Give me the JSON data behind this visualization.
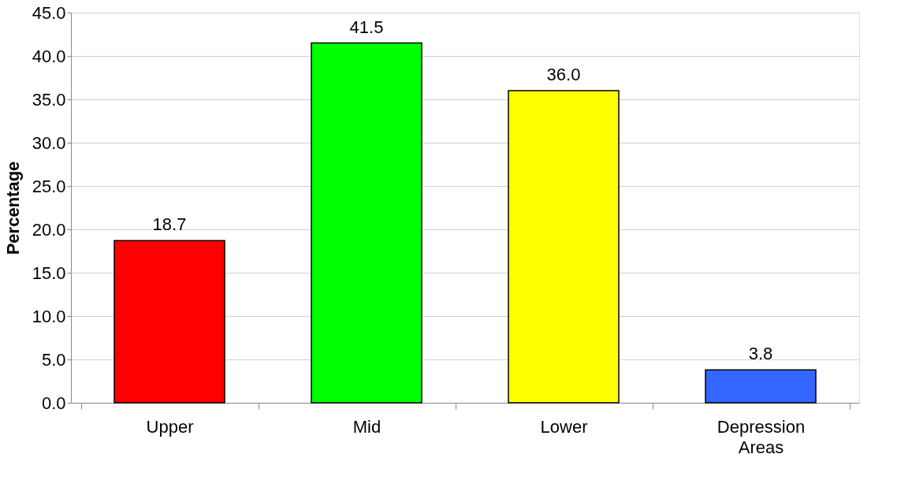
{
  "chart_data": {
    "type": "bar",
    "ylabel": "Percentage",
    "categories": [
      "Upper",
      "Mid",
      "Lower",
      "Depression Areas"
    ],
    "values": [
      18.7,
      41.5,
      36.0,
      3.8
    ],
    "colors": [
      "#ff0000",
      "#00ff00",
      "#ffff00",
      "#3366ff"
    ],
    "value_labels": [
      "18.7",
      "41.5",
      "36.0",
      "3.8"
    ],
    "ylim": [
      0,
      45
    ],
    "yticks": [
      {
        "value": 0,
        "label": "0.0"
      },
      {
        "value": 5,
        "label": "5.0"
      },
      {
        "value": 10,
        "label": "10.0"
      },
      {
        "value": 15,
        "label": "15.0"
      },
      {
        "value": 20,
        "label": "20.0"
      },
      {
        "value": 25,
        "label": "25.0"
      },
      {
        "value": 30,
        "label": "30.0"
      },
      {
        "value": 35,
        "label": "35.0"
      },
      {
        "value": 40,
        "label": "40.0"
      },
      {
        "value": 45,
        "label": "45.0"
      }
    ],
    "grid": "y"
  }
}
